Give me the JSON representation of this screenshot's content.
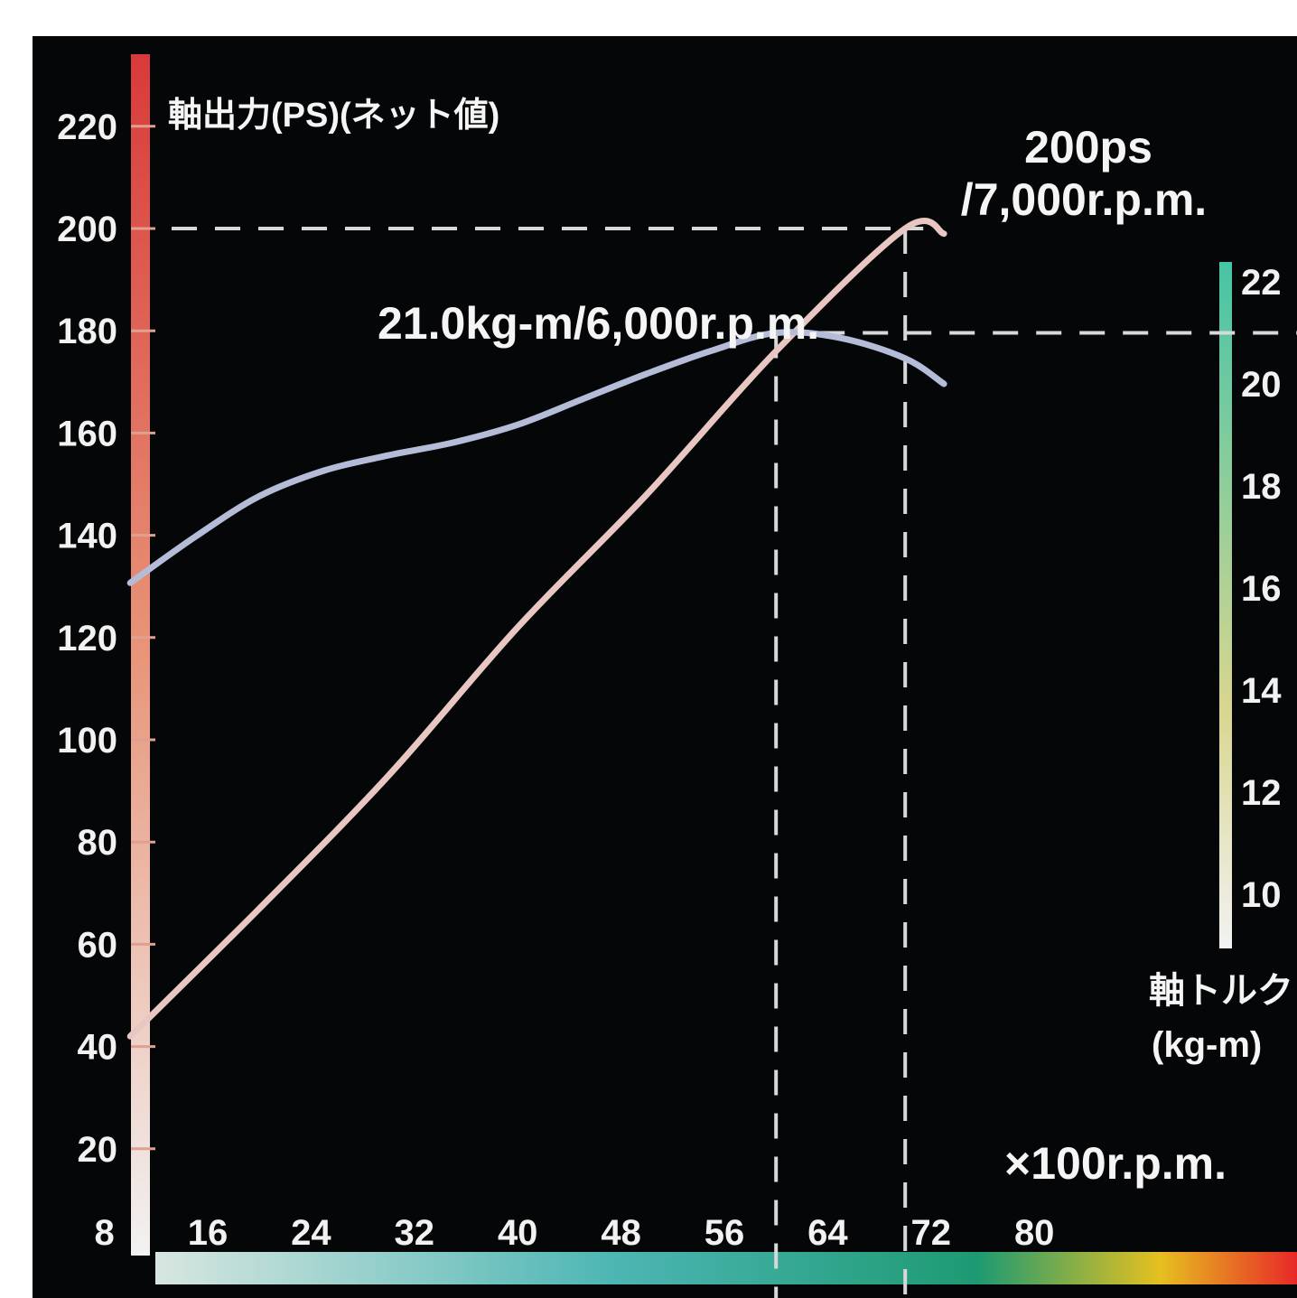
{
  "chart_data": {
    "type": "line",
    "title": "",
    "power_axis_label": "軸出力(PS)(ネット値)",
    "torque_axis_label": [
      "軸トルク",
      "(kg-m)"
    ],
    "x_unit_label": "×100r.p.m.",
    "x_ticks": [
      "8",
      "16",
      "24",
      "32",
      "40",
      "48",
      "56",
      "64",
      "72",
      "80"
    ],
    "y_power_ticks": [
      "20",
      "40",
      "60",
      "80",
      "100",
      "120",
      "140",
      "160",
      "180",
      "200",
      "220"
    ],
    "y_torque_ticks": [
      "10",
      "12",
      "14",
      "16",
      "18",
      "20",
      "22"
    ],
    "xlim": [
      0,
      80
    ],
    "ylim_power": [
      0,
      220
    ],
    "ylim_torque": [
      10,
      22
    ],
    "annotations": {
      "peak_power_line1": "200ps",
      "peak_power_line2": "/7,000r.p.m.",
      "peak_torque": "21.0kg-m/6,000r.p.m."
    },
    "series": [
      {
        "name": "",
        "axis": "power",
        "x": [
          1000,
          2000,
          3000,
          4000,
          5000,
          6000,
          7000,
          7300
        ],
        "y": [
          42,
          67,
          93,
          122,
          148,
          176,
          200,
          199
        ]
      },
      {
        "name": "",
        "axis": "torque",
        "x": [
          1000,
          1500,
          2000,
          2500,
          3000,
          3500,
          4000,
          4500,
          5000,
          5500,
          6000,
          6500,
          7000,
          7300
        ],
        "y": [
          16.1,
          17.0,
          17.8,
          18.3,
          18.6,
          18.85,
          19.2,
          19.7,
          20.2,
          20.65,
          21.0,
          20.9,
          20.5,
          20.0
        ]
      }
    ],
    "reference_lines": [
      {
        "type": "horizontal",
        "axis": "power",
        "value": 200
      },
      {
        "type": "horizontal",
        "axis": "torque",
        "value": 21.0
      },
      {
        "type": "vertical",
        "value": 6000
      },
      {
        "type": "vertical",
        "value": 7000
      }
    ],
    "grid": false,
    "colors": {
      "background": "#050608",
      "power_curve": "#e8c6c2",
      "torque_curve": "#b4bcd8",
      "left_axis_gradient": [
        "#f2f2f2",
        "#e8957a",
        "#d83a3a"
      ],
      "right_axis_gradient": [
        "#f2f2f2",
        "#d8d690",
        "#46c4a6"
      ],
      "bottom_axis_gradient": [
        "#d8e6e0",
        "#4db6b4",
        "#1d9a72",
        "#e6c020",
        "#e82828"
      ]
    }
  }
}
